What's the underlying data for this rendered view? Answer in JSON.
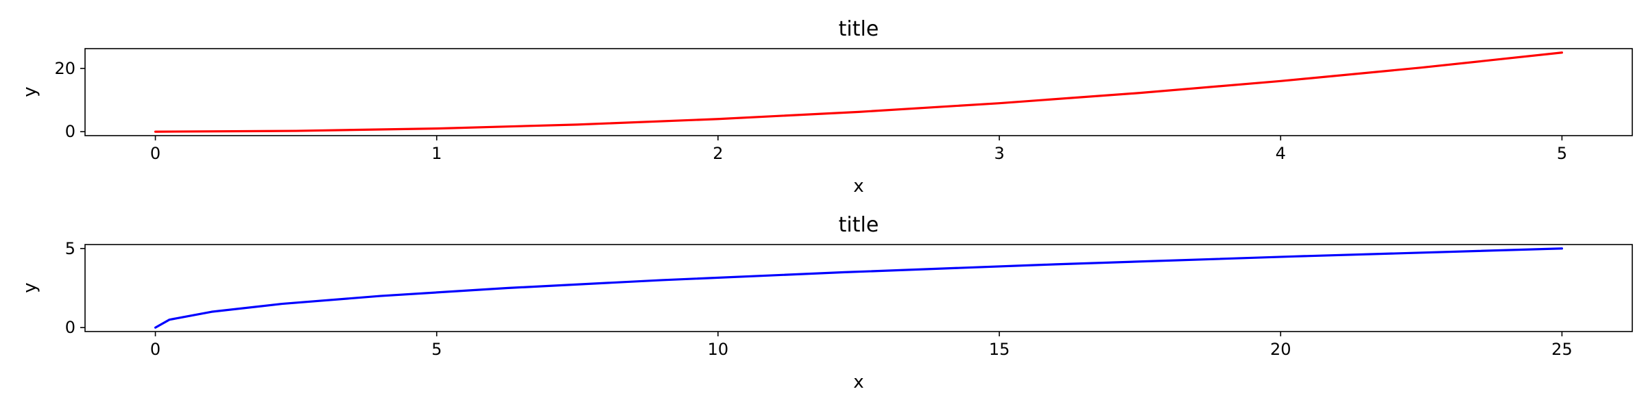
{
  "chart_data": [
    {
      "type": "line",
      "title": "title",
      "xlabel": "x",
      "ylabel": "y",
      "xlim": [
        -0.25,
        5.25
      ],
      "ylim": [
        -1.25,
        26.25
      ],
      "xticks": [
        0,
        1,
        2,
        3,
        4,
        5
      ],
      "yticks": [
        0,
        20
      ],
      "grid": false,
      "series": [
        {
          "color": "#ff0000",
          "x": [
            0,
            0.5,
            1,
            1.5,
            2,
            2.5,
            3,
            3.5,
            4,
            4.5,
            5
          ],
          "y": [
            0,
            0.25,
            1,
            2.25,
            4,
            6.25,
            9,
            12.25,
            16,
            20.25,
            25
          ]
        }
      ]
    },
    {
      "type": "line",
      "title": "title",
      "xlabel": "x",
      "ylabel": "y",
      "xlim": [
        -1.25,
        26.25
      ],
      "ylim": [
        -0.25,
        5.25
      ],
      "xticks": [
        0,
        5,
        10,
        15,
        20,
        25
      ],
      "yticks": [
        0,
        5
      ],
      "grid": false,
      "series": [
        {
          "color": "#0000ff",
          "x": [
            0,
            0.25,
            1,
            2.25,
            4,
            6.25,
            9,
            12.25,
            16,
            20.25,
            25
          ],
          "y": [
            0,
            0.5,
            1,
            1.5,
            2,
            2.5,
            3,
            3.5,
            4,
            4.5,
            5
          ]
        }
      ]
    }
  ]
}
